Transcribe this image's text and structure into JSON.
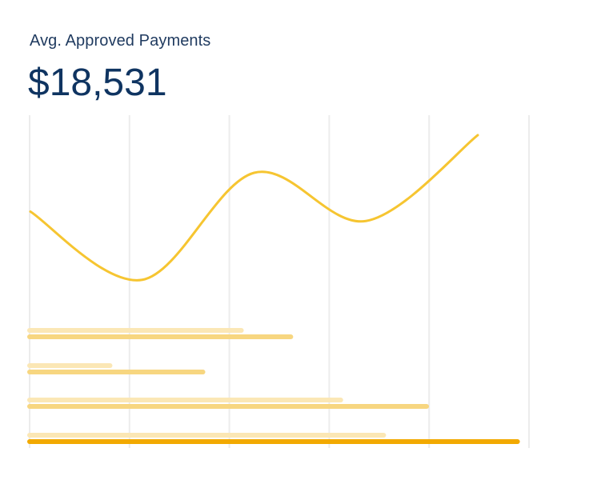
{
  "widget": {
    "title": "Avg. Approved Payments",
    "metric_value": "$18,531"
  },
  "colors": {
    "title_text": "#1f3a5f",
    "metric_text": "#0f3461",
    "gridline": "#ececec",
    "line": "#f6c531",
    "bar_light": "#fbe7b5",
    "bar_medium": "#f7d680",
    "bar_dark": "#f2a900"
  },
  "chart_data": {
    "type": "line",
    "grid": {
      "vertical": true,
      "horizontal": false,
      "lines": 6
    },
    "line_series": {
      "values": [
        0.67,
        0.09,
        1.0,
        0.59,
        1.32
      ]
    },
    "bar_groups": [
      {
        "light": 0.424,
        "main": 0.523,
        "main_style": "medium"
      },
      {
        "light": 0.161,
        "main": 0.347,
        "main_style": "medium"
      },
      {
        "light": 0.623,
        "main": 0.795,
        "main_style": "medium"
      },
      {
        "light": 0.709,
        "main": 0.977,
        "main_style": "dark"
      }
    ]
  }
}
